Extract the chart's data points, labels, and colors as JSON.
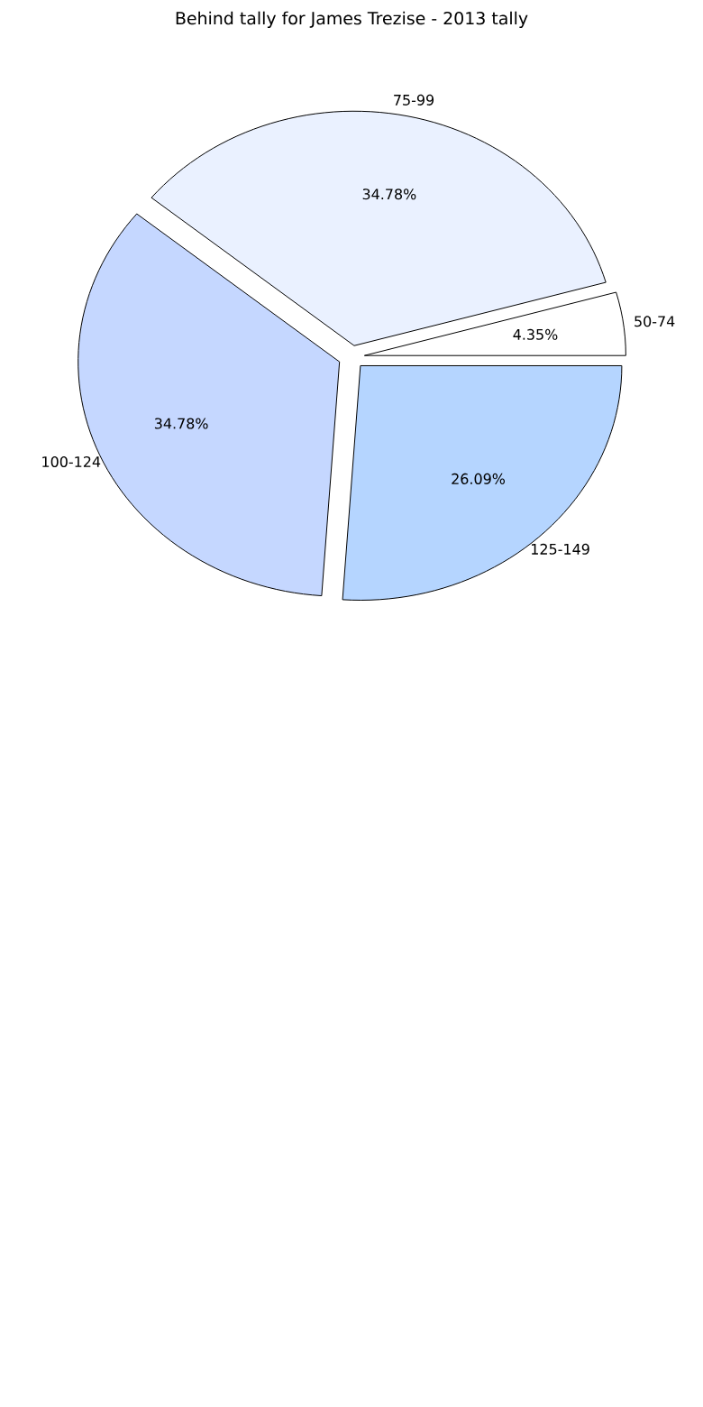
{
  "chart_data": {
    "type": "pie",
    "title": "Behind tally for James Trezise - 2013 tally",
    "categories": [
      "50-74",
      "75-99",
      "100-124",
      "125-149"
    ],
    "values": [
      4.35,
      34.78,
      34.78,
      26.09
    ],
    "value_labels": [
      "4.35%",
      "34.78%",
      "34.78%",
      "26.09%"
    ],
    "colors": [
      "#ffffff",
      "#eaf1ff",
      "#c5d7ff",
      "#b5d5ff"
    ]
  }
}
